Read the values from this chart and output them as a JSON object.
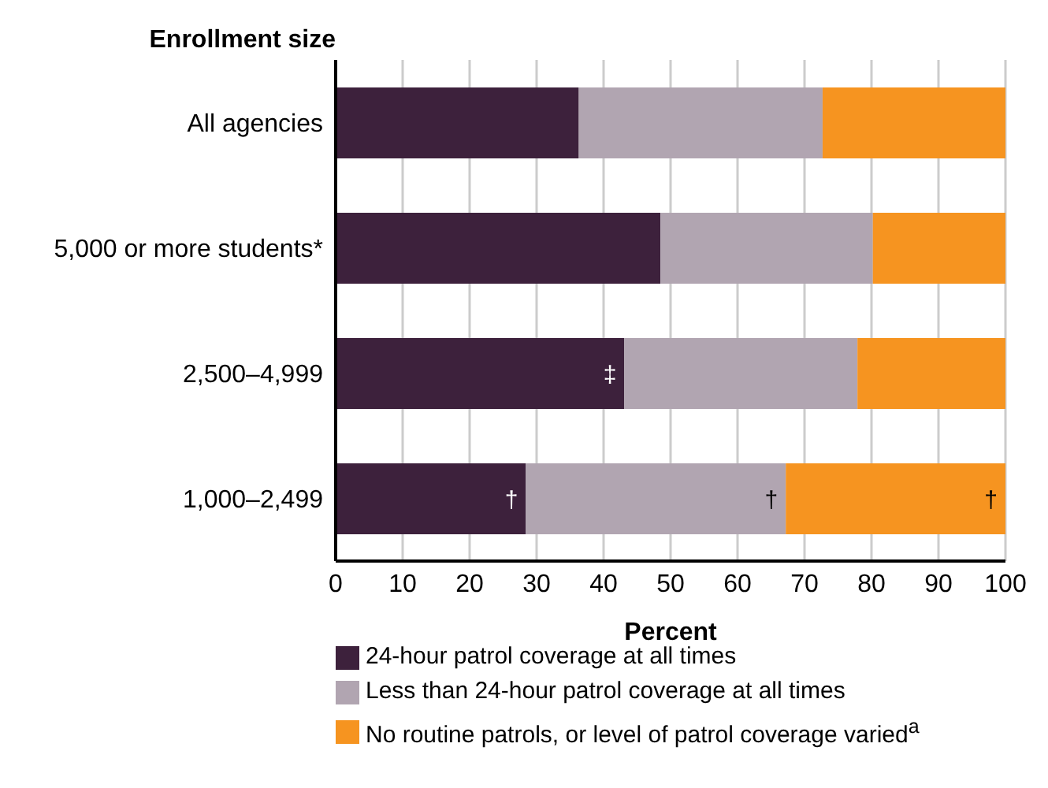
{
  "chart_data": {
    "type": "bar",
    "orientation": "horizontal",
    "stacked": true,
    "ylabel": "Enrollment size",
    "xlabel": "Percent",
    "categories": [
      "All agencies",
      "5,000 or more students*",
      "2,500–4,999",
      "1,000–2,499"
    ],
    "series": [
      {
        "name": "24-hour patrol coverage at all times",
        "color": "#3d213c",
        "values": [
          36.3,
          48.5,
          43.1,
          28.4
        ],
        "value_labels": [
          null,
          null,
          "‡",
          "†"
        ]
      },
      {
        "name": "Less than 24-hour patrol coverage at all times",
        "color": "#b1a5b1",
        "values": [
          36.4,
          31.7,
          34.8,
          38.8
        ],
        "value_labels": [
          null,
          null,
          null,
          "†"
        ]
      },
      {
        "name": "No routine patrols, or level of patrol coverage varied$^{a}$",
        "color": "#f69420",
        "values": [
          27.3,
          19.8,
          22.1,
          32.8
        ],
        "value_labels": [
          null,
          null,
          null,
          "†"
        ]
      }
    ],
    "xlim": [
      0,
      100
    ],
    "xticks": [
      0,
      10,
      20,
      30,
      40,
      50,
      60,
      70,
      80,
      90,
      100
    ],
    "grid": "x",
    "legend": "bottom"
  }
}
